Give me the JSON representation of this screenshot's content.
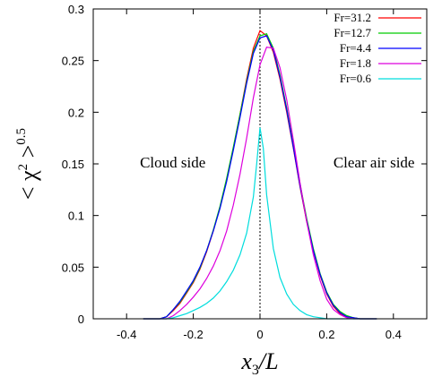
{
  "chart_data": {
    "type": "line",
    "xlabel": "x_3/L",
    "ylabel": "< χ^2 >^0.5",
    "xlim": [
      -0.5,
      0.5
    ],
    "ylim": [
      0,
      0.3
    ],
    "x_ticks": [
      "-0.4",
      "-0.2",
      "0",
      "0.2",
      "0.4"
    ],
    "x_tick_values": [
      -0.4,
      -0.2,
      0,
      0.2,
      0.4
    ],
    "y_ticks": [
      "0",
      "0.05",
      "0.1",
      "0.15",
      "0.2",
      "0.25",
      "0.3"
    ],
    "y_tick_values": [
      0,
      0.05,
      0.1,
      0.15,
      0.2,
      0.25,
      0.3
    ],
    "legend_position": "top-right",
    "annotations": [
      {
        "text": "Cloud side",
        "x": -0.36,
        "y": 0.145
      },
      {
        "text": "Clear air side",
        "x": 0.22,
        "y": 0.145
      }
    ],
    "vertical_reference_line": 0,
    "series": [
      {
        "name": "Fr=31.2",
        "color": "#ff0000",
        "x": [
          -0.35,
          -0.3,
          -0.28,
          -0.26,
          -0.24,
          -0.22,
          -0.2,
          -0.18,
          -0.16,
          -0.14,
          -0.12,
          -0.1,
          -0.08,
          -0.06,
          -0.04,
          -0.02,
          0,
          0.02,
          0.04,
          0.06,
          0.08,
          0.1,
          0.12,
          0.14,
          0.16,
          0.18,
          0.2,
          0.22,
          0.24,
          0.26,
          0.28,
          0.3,
          0.35
        ],
        "y": [
          0,
          0,
          0.002,
          0.008,
          0.015,
          0.025,
          0.035,
          0.048,
          0.065,
          0.085,
          0.108,
          0.135,
          0.165,
          0.198,
          0.232,
          0.262,
          0.279,
          0.274,
          0.258,
          0.232,
          0.2,
          0.165,
          0.128,
          0.094,
          0.066,
          0.042,
          0.024,
          0.012,
          0.005,
          0.002,
          0.001,
          0,
          0
        ]
      },
      {
        "name": "Fr=12.7",
        "color": "#00cc00",
        "x": [
          -0.35,
          -0.3,
          -0.28,
          -0.26,
          -0.24,
          -0.22,
          -0.2,
          -0.18,
          -0.16,
          -0.14,
          -0.12,
          -0.1,
          -0.08,
          -0.06,
          -0.04,
          -0.02,
          0,
          0.02,
          0.04,
          0.06,
          0.08,
          0.1,
          0.12,
          0.14,
          0.16,
          0.18,
          0.2,
          0.22,
          0.24,
          0.26,
          0.28,
          0.3,
          0.35
        ],
        "y": [
          0,
          0,
          0.002,
          0.009,
          0.016,
          0.026,
          0.036,
          0.049,
          0.066,
          0.086,
          0.109,
          0.136,
          0.166,
          0.198,
          0.23,
          0.259,
          0.274,
          0.276,
          0.262,
          0.236,
          0.204,
          0.168,
          0.131,
          0.097,
          0.068,
          0.044,
          0.026,
          0.014,
          0.007,
          0.003,
          0.001,
          0,
          0
        ]
      },
      {
        "name": "Fr=4.4",
        "color": "#0000ff",
        "x": [
          -0.35,
          -0.3,
          -0.28,
          -0.26,
          -0.24,
          -0.22,
          -0.2,
          -0.18,
          -0.16,
          -0.14,
          -0.12,
          -0.1,
          -0.08,
          -0.06,
          -0.04,
          -0.02,
          0,
          0.02,
          0.04,
          0.06,
          0.08,
          0.1,
          0.12,
          0.14,
          0.16,
          0.18,
          0.2,
          0.22,
          0.24,
          0.26,
          0.28,
          0.3,
          0.35
        ],
        "y": [
          0,
          0,
          0.002,
          0.009,
          0.017,
          0.027,
          0.037,
          0.05,
          0.066,
          0.085,
          0.107,
          0.133,
          0.163,
          0.195,
          0.228,
          0.257,
          0.272,
          0.274,
          0.26,
          0.234,
          0.202,
          0.166,
          0.129,
          0.095,
          0.066,
          0.043,
          0.025,
          0.013,
          0.006,
          0.002,
          0.001,
          0,
          0
        ]
      },
      {
        "name": "Fr=1.8",
        "color": "#dd00dd",
        "x": [
          -0.35,
          -0.3,
          -0.28,
          -0.26,
          -0.24,
          -0.22,
          -0.2,
          -0.18,
          -0.16,
          -0.14,
          -0.12,
          -0.1,
          -0.08,
          -0.06,
          -0.04,
          -0.02,
          0,
          0.02,
          0.04,
          0.06,
          0.08,
          0.1,
          0.12,
          0.14,
          0.16,
          0.18,
          0.2,
          0.22,
          0.24,
          0.26,
          0.28,
          0.3,
          0.35
        ],
        "y": [
          0,
          0,
          0,
          0.003,
          0.008,
          0.014,
          0.021,
          0.029,
          0.039,
          0.051,
          0.066,
          0.085,
          0.11,
          0.14,
          0.175,
          0.214,
          0.246,
          0.263,
          0.262,
          0.243,
          0.212,
          0.173,
          0.132,
          0.094,
          0.062,
          0.037,
          0.019,
          0.009,
          0.004,
          0.001,
          0,
          0,
          0
        ]
      },
      {
        "name": "Fr=0.6",
        "color": "#00dddd",
        "x": [
          -0.35,
          -0.3,
          -0.28,
          -0.26,
          -0.24,
          -0.22,
          -0.2,
          -0.18,
          -0.16,
          -0.14,
          -0.12,
          -0.1,
          -0.08,
          -0.06,
          -0.04,
          -0.02,
          -0.01,
          0,
          0.01,
          0.02,
          0.04,
          0.06,
          0.08,
          0.1,
          0.12,
          0.14,
          0.16,
          0.18,
          0.2,
          0.22,
          0.24,
          0.26,
          0.28,
          0.3,
          0.35
        ],
        "y": [
          0,
          0,
          0,
          0.001,
          0.003,
          0.005,
          0.008,
          0.011,
          0.015,
          0.02,
          0.027,
          0.036,
          0.047,
          0.062,
          0.083,
          0.118,
          0.15,
          0.185,
          0.165,
          0.12,
          0.068,
          0.04,
          0.024,
          0.014,
          0.008,
          0.004,
          0.002,
          0.001,
          0,
          0,
          0,
          0,
          0,
          0,
          0
        ]
      }
    ]
  }
}
